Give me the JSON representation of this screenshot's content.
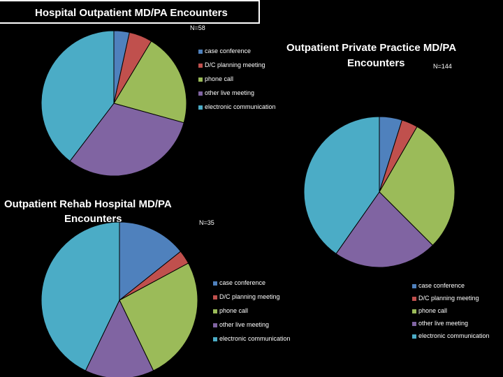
{
  "chart_data": [
    {
      "type": "pie",
      "title": "Hospital Outpatient MD/PA Encounters",
      "n_label": "N=58",
      "categories": [
        "case conference",
        "D/C planning meeting",
        "phone call",
        "other live meeting",
        "electronic communication"
      ],
      "values": [
        2,
        3,
        12,
        18,
        23
      ],
      "colors": [
        "#4f81bd",
        "#c0504d",
        "#9bbb59",
        "#8064a2",
        "#4bacc6"
      ],
      "legend": [
        "case conference",
        "D/C planning meeting",
        "phone call",
        "other live meeting",
        "electronic communication"
      ]
    },
    {
      "type": "pie",
      "title_line1": "Outpatient Private Practice MD/PA",
      "title_line2": "Encounters",
      "n_label": "N=144",
      "categories": [
        "case conference",
        "D/C planning meeting",
        "phone call",
        "other live meeting",
        "electronic communication"
      ],
      "values": [
        7,
        5,
        42,
        32,
        58
      ],
      "colors": [
        "#4f81bd",
        "#c0504d",
        "#9bbb59",
        "#8064a2",
        "#4bacc6"
      ],
      "legend": [
        "case conference",
        "D/C planning meeting",
        "phone call",
        "other live meeting",
        "electronic communication"
      ]
    },
    {
      "type": "pie",
      "title_line1": "Outpatient Rehab Hospital MD/PA",
      "title_line2": "Encounters",
      "n_label": "N=35",
      "categories": [
        "case conference",
        "D/C planning meeting",
        "phone call",
        "other live meeting",
        "electronic communication"
      ],
      "values": [
        5,
        1,
        9,
        5,
        15
      ],
      "colors": [
        "#4f81bd",
        "#c0504d",
        "#9bbb59",
        "#8064a2",
        "#4bacc6"
      ],
      "legend": [
        "case conference",
        "D/C planning meeting",
        "phone call",
        "other live meeting",
        "electronic communication"
      ]
    }
  ]
}
